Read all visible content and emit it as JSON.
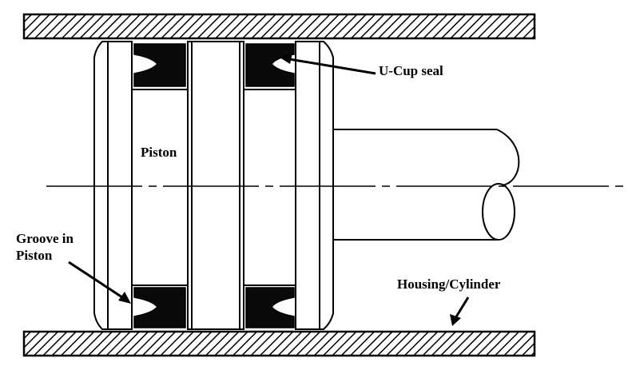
{
  "labels": {
    "u_cup_seal": "U-Cup seal",
    "piston": "Piston",
    "groove_line1": "Groove in",
    "groove_line2": "Piston",
    "housing": "Housing/Cylinder"
  },
  "colors": {
    "ink": "#000000",
    "background": "#ffffff",
    "seal_fill": "#0a0a0a"
  }
}
